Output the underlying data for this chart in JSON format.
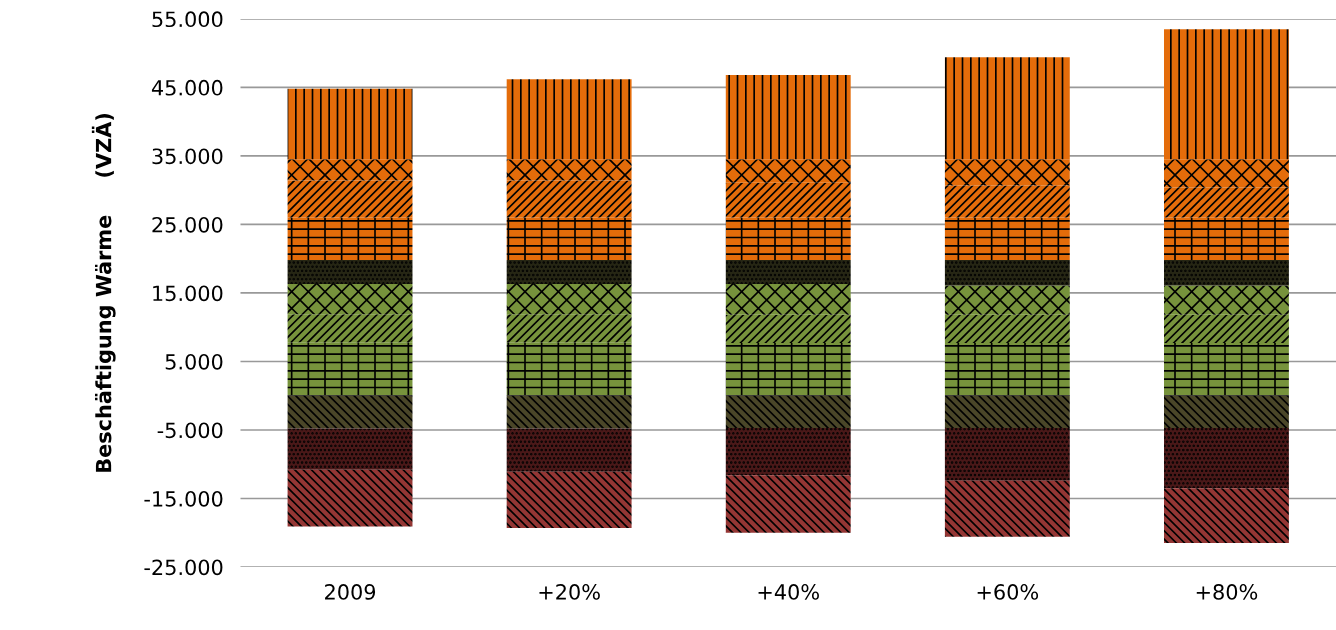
{
  "chart_data": {
    "type": "bar",
    "stacked": true,
    "ylabel": "Beschäftigung Wärme     (VZÄ)",
    "categories": [
      "2009",
      "+20%",
      "+40%",
      "+60%",
      "+80%"
    ],
    "series": [
      {
        "color": "#77933c",
        "values": [
          7800,
          7800,
          7700,
          7700,
          7700
        ]
      },
      {
        "color": "#77933c",
        "values": [
          4100,
          4100,
          4100,
          4100,
          4100
        ]
      },
      {
        "color": "#77933c",
        "values": [
          4400,
          4400,
          4500,
          4300,
          4300
        ]
      },
      {
        "color": "#262614",
        "values": [
          3500,
          3500,
          3500,
          3700,
          3700
        ]
      },
      {
        "color": "#e46c0a",
        "values": [
          6200,
          6200,
          6200,
          6200,
          6200
        ]
      },
      {
        "color": "#e46c0a",
        "values": [
          5400,
          5400,
          5100,
          4700,
          4400
        ]
      },
      {
        "color": "#e46c0a",
        "values": [
          3100,
          3100,
          3400,
          3800,
          4100
        ]
      },
      {
        "color": "#e46c0a",
        "values": [
          10300,
          11700,
          12300,
          14900,
          19000
        ]
      },
      {
        "color": "#4a4628",
        "values": [
          -4800,
          -4800,
          -4700,
          -4700,
          -4700
        ]
      },
      {
        "color": "#4a1818",
        "values": [
          -6000,
          -6300,
          -6900,
          -7700,
          -8800
        ]
      },
      {
        "color": "#943634",
        "values": [
          -8300,
          -8200,
          -8400,
          -8200,
          -8000
        ]
      }
    ],
    "ylim": [
      -25000,
      55000
    ],
    "yticks": [
      {
        "value": -25000,
        "label": "-25.000"
      },
      {
        "value": -15000,
        "label": "-15.000"
      },
      {
        "value": -5000,
        "label": "-5.000"
      },
      {
        "value": 5000,
        "label": "5.000"
      },
      {
        "value": 15000,
        "label": "15.000"
      },
      {
        "value": 25000,
        "label": "25.000"
      },
      {
        "value": 35000,
        "label": "35.000"
      },
      {
        "value": 45000,
        "label": "45.000"
      },
      {
        "value": 55000,
        "label": "55.000"
      }
    ],
    "grid": "y",
    "legend": false
  }
}
